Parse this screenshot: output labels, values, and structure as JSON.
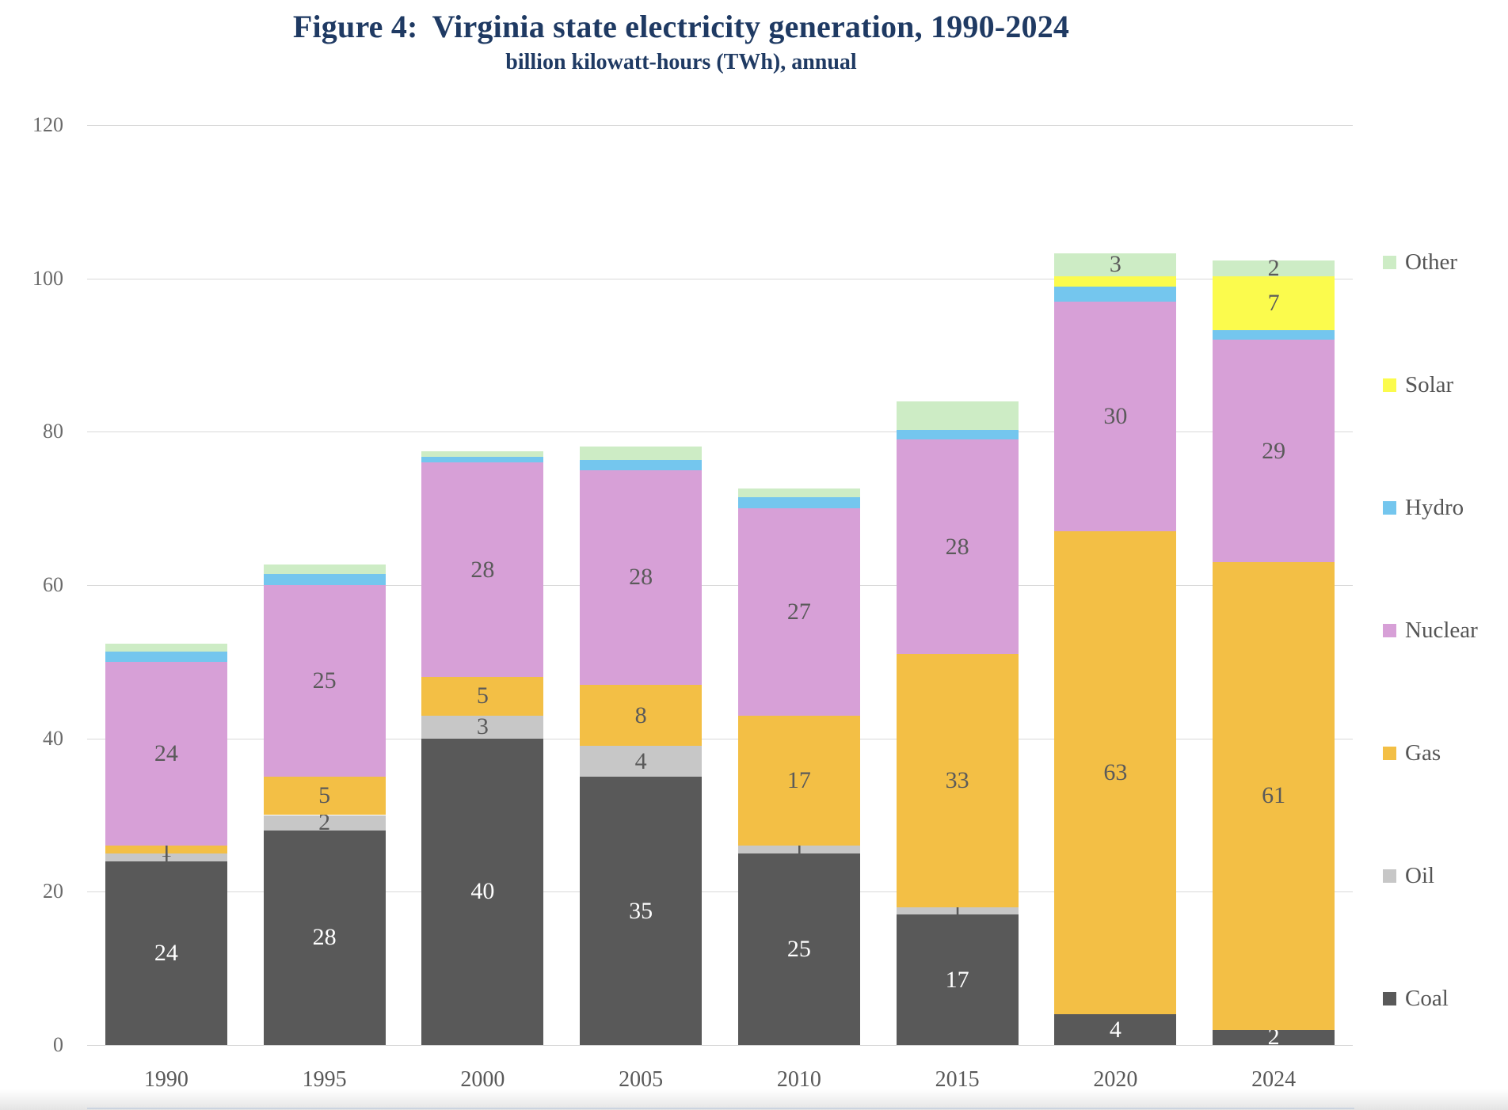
{
  "title": {
    "prefix": "Figure 4:",
    "text": "Virginia state electricity generation, 1990-2024"
  },
  "subtitle": "billion kilowatt-hours (TWh), annual",
  "colors": {
    "title": "#1f3a63",
    "axis_text": "#595959",
    "gridline": "#d9d9d9",
    "label_dark": "#5a5a5a",
    "label_light": "#ffffff"
  },
  "chart_data": {
    "type": "bar",
    "stacked": true,
    "title": "Figure 4: Virginia state electricity generation, 1990-2024",
    "subtitle": "billion kilowatt-hours (TWh), annual",
    "xlabel": "",
    "ylabel": "billion kilowatt-hours (TWh)",
    "ylim": [
      0,
      120
    ],
    "yticks": [
      0,
      20,
      40,
      60,
      80,
      100,
      120
    ],
    "grid": true,
    "legend_position": "right",
    "categories": [
      "1990",
      "1995",
      "2000",
      "2005",
      "2010",
      "2015",
      "2020",
      "2024"
    ],
    "series": [
      {
        "name": "Coal",
        "color": "#595959",
        "label_color": "#ffffff",
        "values": [
          24,
          28,
          40,
          35,
          25,
          17,
          4,
          2
        ],
        "labels": [
          "24",
          "28",
          "40",
          "35",
          "25",
          "17",
          "4",
          "2"
        ]
      },
      {
        "name": "Oil",
        "color": "#c7c7c7",
        "values": [
          1,
          2,
          3,
          4,
          1,
          1,
          0,
          0
        ],
        "labels": [
          "1",
          "2",
          "3",
          "4",
          "1",
          "1",
          "",
          ""
        ]
      },
      {
        "name": "Gas",
        "color": "#f3bf45",
        "values": [
          1,
          5,
          5,
          8,
          17,
          33,
          63,
          61
        ],
        "labels": [
          "1",
          "5",
          "5",
          "8",
          "17",
          "33",
          "63",
          "61"
        ]
      },
      {
        "name": "Nuclear",
        "color": "#d7a0d7",
        "values": [
          24,
          25,
          28,
          28,
          27,
          28,
          30,
          29
        ],
        "labels": [
          "24",
          "25",
          "28",
          "28",
          "27",
          "28",
          "30",
          "29"
        ]
      },
      {
        "name": "Hydro",
        "color": "#74c6ee",
        "values": [
          1.3,
          1.4,
          0.7,
          1.3,
          1.5,
          1.2,
          1.9,
          1.3
        ],
        "labels": [
          "",
          "",
          "",
          "",
          "",
          "",
          "",
          ""
        ]
      },
      {
        "name": "Solar",
        "color": "#fbfb4d",
        "values": [
          0,
          0,
          0,
          0,
          0,
          0,
          1.4,
          7
        ],
        "labels": [
          "",
          "",
          "",
          "",
          "",
          "",
          "",
          "7"
        ]
      },
      {
        "name": "Other",
        "color": "#cdecc5",
        "values": [
          1.1,
          1.3,
          0.8,
          1.8,
          1.1,
          3.8,
          3,
          2
        ],
        "labels": [
          "",
          "",
          "",
          "",
          "",
          "",
          "3",
          "2"
        ]
      }
    ],
    "legend_order": [
      "Other",
      "Solar",
      "Hydro",
      "Nuclear",
      "Gas",
      "Oil",
      "Coal"
    ]
  }
}
